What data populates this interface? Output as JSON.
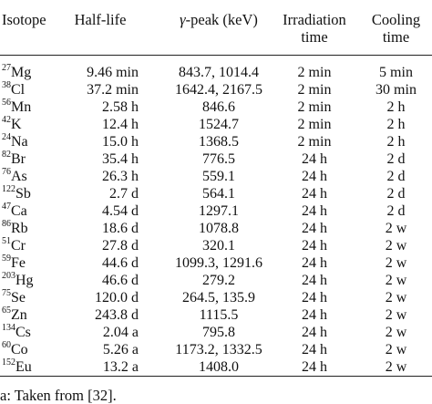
{
  "headers": {
    "isotope": "Isotope",
    "half_life": "Half-life",
    "gamma_symbol": "γ",
    "gamma_rest": "-peak (keV)",
    "irradiation_line1": "Irradiation",
    "irradiation_line2": "time",
    "cooling_line1": "Cooling",
    "cooling_line2": "time"
  },
  "rows": [
    {
      "mass": "27",
      "el": "Mg",
      "half": "9.46 min",
      "peak": "843.7, 1014.4",
      "irr": "2 min",
      "cool": "5 min"
    },
    {
      "mass": "38",
      "el": "Cl",
      "half": "37.2 min",
      "peak": "1642.4, 2167.5",
      "irr": "2 min",
      "cool": "30 min"
    },
    {
      "mass": "56",
      "el": "Mn",
      "half": "2.58 h",
      "peak": "846.6",
      "irr": "2 min",
      "cool": "2 h"
    },
    {
      "mass": "42",
      "el": "K",
      "half": "12.4 h",
      "peak": "1524.7",
      "irr": "2 min",
      "cool": "2 h"
    },
    {
      "mass": "24",
      "el": "Na",
      "half": "15.0 h",
      "peak": "1368.5",
      "irr": "2 min",
      "cool": "2 h"
    },
    {
      "mass": "82",
      "el": "Br",
      "half": "35.4 h",
      "peak": "776.5",
      "irr": "24 h",
      "cool": "2 d"
    },
    {
      "mass": "76",
      "el": "As",
      "half": "26.3 h",
      "peak": "559.1",
      "irr": "24 h",
      "cool": "2 d"
    },
    {
      "mass": "122",
      "el": "Sb",
      "half": "2.7 d",
      "peak": "564.1",
      "irr": "24 h",
      "cool": "2 d"
    },
    {
      "mass": "47",
      "el": "Ca",
      "half": "4.54 d",
      "peak": "1297.1",
      "irr": "24 h",
      "cool": "2 d"
    },
    {
      "mass": "86",
      "el": "Rb",
      "half": "18.6 d",
      "peak": "1078.8",
      "irr": "24 h",
      "cool": "2 w"
    },
    {
      "mass": "51",
      "el": "Cr",
      "half": "27.8 d",
      "peak": "320.1",
      "irr": "24 h",
      "cool": "2 w"
    },
    {
      "mass": "59",
      "el": "Fe",
      "half": "44.6 d",
      "peak": "1099.3, 1291.6",
      "irr": "24 h",
      "cool": "2 w"
    },
    {
      "mass": "203",
      "el": "Hg",
      "half": "46.6 d",
      "peak": "279.2",
      "irr": "24 h",
      "cool": "2 w"
    },
    {
      "mass": "75",
      "el": "Se",
      "half": "120.0 d",
      "peak": "264.5,   135.9",
      "irr": "24 h",
      "cool": "2 w"
    },
    {
      "mass": "65",
      "el": "Zn",
      "half": "243.8 d",
      "peak": "1115.5",
      "irr": "24 h",
      "cool": "2 w"
    },
    {
      "mass": "134",
      "el": "Cs",
      "half": "2.04 a",
      "peak": "795.8",
      "irr": "24 h",
      "cool": "2 w"
    },
    {
      "mass": "60",
      "el": "Co",
      "half": "5.26 a",
      "peak": "1173.2, 1332.5",
      "irr": "24 h",
      "cool": "2 w"
    },
    {
      "mass": "152",
      "el": "Eu",
      "half": "13.2 a",
      "peak": "1408.0",
      "irr": "24 h",
      "cool": "2 w"
    }
  ],
  "footnote": "a: Taken from [32]."
}
